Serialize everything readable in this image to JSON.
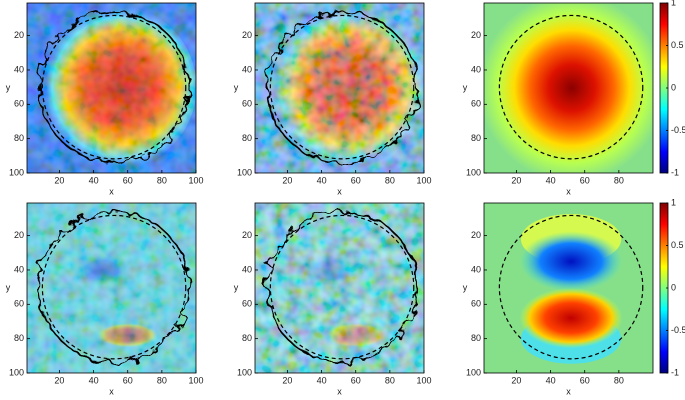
{
  "chart_data": [
    {
      "type": "heatmap",
      "colormap": "jet",
      "xlabel": "x",
      "ylabel": "y",
      "xlim": [
        1,
        100
      ],
      "ylim": [
        1,
        100
      ],
      "y_reversed": true,
      "xticks": [
        20,
        40,
        60,
        80,
        100
      ],
      "yticks": [
        20,
        40,
        60,
        80,
        100
      ]
    },
    {
      "type": "heatmap",
      "colormap": "jet",
      "xlabel": "x",
      "ylabel": "y",
      "xlim": [
        1,
        100
      ],
      "ylim": [
        1,
        100
      ],
      "y_reversed": true,
      "xticks": [
        20,
        40,
        60,
        80,
        100
      ],
      "yticks": [
        20,
        40,
        60,
        80,
        100
      ]
    },
    {
      "type": "heatmap",
      "colormap": "jet",
      "xlabel": "x",
      "ylabel": "y",
      "xlim": [
        1,
        100
      ],
      "ylim": [
        1,
        100
      ],
      "y_reversed": true,
      "xticks": [
        20,
        40,
        60,
        80
      ],
      "yticks": [
        20,
        40,
        60,
        80,
        100
      ],
      "colorbar": {
        "lim": [
          -1,
          1
        ],
        "ticks": [
          1,
          0.5,
          0,
          -0.5,
          -1
        ]
      }
    },
    {
      "type": "heatmap",
      "colormap": "jet",
      "xlabel": "x",
      "ylabel": "y",
      "xlim": [
        1,
        100
      ],
      "ylim": [
        1,
        100
      ],
      "y_reversed": true,
      "xticks": [
        20,
        40,
        60,
        80,
        100
      ],
      "yticks": [
        20,
        40,
        60,
        80,
        100
      ]
    },
    {
      "type": "heatmap",
      "colormap": "jet",
      "xlabel": "x",
      "ylabel": "y",
      "xlim": [
        1,
        100
      ],
      "ylim": [
        1,
        100
      ],
      "y_reversed": true,
      "xticks": [
        20,
        40,
        60,
        80,
        100
      ],
      "yticks": [
        20,
        40,
        60,
        80,
        100
      ]
    },
    {
      "type": "heatmap",
      "colormap": "jet",
      "xlabel": "x",
      "ylabel": "y",
      "xlim": [
        1,
        100
      ],
      "ylim": [
        1,
        100
      ],
      "y_reversed": true,
      "xticks": [
        20,
        40,
        60,
        80
      ],
      "yticks": [
        20,
        40,
        60,
        80,
        100
      ],
      "colorbar": {
        "lim": [
          -1,
          1
        ],
        "ticks": [
          1,
          0.5,
          0,
          -0.5,
          -1
        ]
      }
    }
  ]
}
